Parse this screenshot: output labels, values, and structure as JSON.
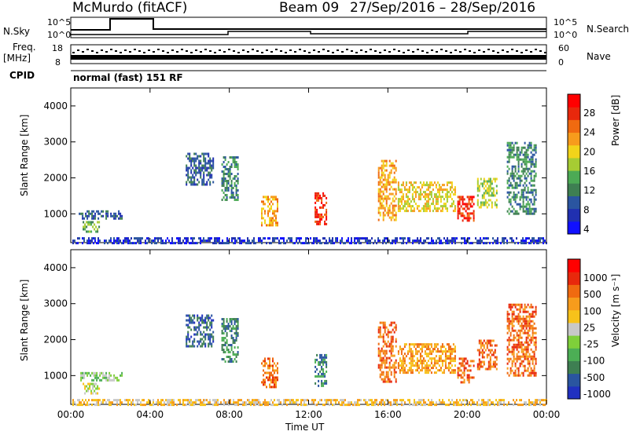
{
  "header": {
    "station": "McMurdo (fitACF)",
    "beam": "Beam 09",
    "date_range": "27/Sep/2016 – 28/Sep/2016"
  },
  "top_panels": {
    "nsky_label": "N.Sky",
    "nsky_ticks": [
      "10^5",
      "10^0"
    ],
    "nsearch_label": "N.Search",
    "nsearch_ticks": [
      "10^5",
      "10^0"
    ],
    "freq_label_1": "Freq.",
    "freq_label_2": "[MHz]",
    "freq_ticks": [
      "18",
      "8"
    ],
    "nave_label": "Nave",
    "nave_ticks": [
      "60",
      "0"
    ],
    "cpid_label": "CPID",
    "cpid_text": "normal (fast) 151 RF"
  },
  "chart_data": [
    {
      "type": "heatmap",
      "title": "",
      "xlabel": "Time UT",
      "ylabel": "Slant Range [km]",
      "x_ticks": [
        "00:00",
        "04:00",
        "08:00",
        "12:00",
        "16:00",
        "20:00",
        "00:00"
      ],
      "y_ticks": [
        1000,
        2000,
        3000,
        4000
      ],
      "ylim": [
        200,
        4500
      ],
      "xlim_hours": [
        0,
        24
      ],
      "colorbar": {
        "label": "Power [dB]",
        "tick_labels": [
          "28",
          "24",
          "20",
          "16",
          "12",
          "8",
          "4"
        ],
        "colors": [
          "#1010ff",
          "#2030b0",
          "#2a55a0",
          "#3e7f52",
          "#4caa55",
          "#a6cc33",
          "#f2d41a",
          "#f79c1c",
          "#f06a10",
          "#e8280c",
          "#ff0000"
        ]
      },
      "echo_regions": [
        {
          "t0": 0.4,
          "t1": 2.6,
          "r0": 900,
          "r1": 1100,
          "level": 2
        },
        {
          "t0": 0.6,
          "t1": 1.4,
          "r0": 500,
          "r1": 800,
          "level": 4
        },
        {
          "t0": 9.6,
          "t1": 10.4,
          "r0": 700,
          "r1": 1500,
          "level": 7
        },
        {
          "t0": 12.3,
          "t1": 12.9,
          "r0": 700,
          "r1": 1600,
          "level": 9
        },
        {
          "t0": 15.5,
          "t1": 16.4,
          "r0": 800,
          "r1": 2500,
          "level": 7
        },
        {
          "t0": 16.5,
          "t1": 19.4,
          "r0": 1100,
          "r1": 1900,
          "level": 6
        },
        {
          "t0": 19.5,
          "t1": 20.3,
          "r0": 800,
          "r1": 1500,
          "level": 9
        },
        {
          "t0": 20.5,
          "t1": 21.5,
          "r0": 1200,
          "r1": 2000,
          "level": 5
        },
        {
          "t0": 22.0,
          "t1": 23.5,
          "r0": 1000,
          "r1": 3000,
          "level": 3
        },
        {
          "t0": 7.6,
          "t1": 8.4,
          "r0": 1400,
          "r1": 2600,
          "level": 3
        },
        {
          "t0": 5.8,
          "t1": 7.2,
          "r0": 1800,
          "r1": 2700,
          "level": 2
        },
        {
          "t0": 0.0,
          "t1": 24.0,
          "r0": 200,
          "r1": 350,
          "level": 1
        }
      ]
    },
    {
      "type": "heatmap",
      "title": "",
      "xlabel": "Time UT",
      "ylabel": "Slant Range [km]",
      "x_ticks": [
        "00:00",
        "04:00",
        "08:00",
        "12:00",
        "16:00",
        "20:00",
        "00:00"
      ],
      "y_ticks": [
        1000,
        2000,
        3000,
        4000
      ],
      "ylim": [
        200,
        4500
      ],
      "xlim_hours": [
        0,
        24
      ],
      "colorbar": {
        "label": "Velocity [m s⁻¹]",
        "tick_labels": [
          "1000",
          "500",
          "100",
          "25",
          "-25",
          "-100",
          "-500",
          "-1000"
        ],
        "colors": [
          "#2030c0",
          "#2a55a0",
          "#3e7f52",
          "#4cae55",
          "#7fcf3a",
          "#c8c8c8",
          "#f7c21a",
          "#f79c1c",
          "#f06a10",
          "#e8280c",
          "#ff0000"
        ]
      },
      "echo_regions": [
        {
          "t0": 0.4,
          "t1": 2.6,
          "r0": 900,
          "r1": 1100,
          "level": 4
        },
        {
          "t0": 0.6,
          "t1": 1.4,
          "r0": 500,
          "r1": 800,
          "level": 5
        },
        {
          "t0": 9.6,
          "t1": 10.4,
          "r0": 700,
          "r1": 1500,
          "level": 8
        },
        {
          "t0": 12.3,
          "t1": 12.9,
          "r0": 700,
          "r1": 1600,
          "level": 2
        },
        {
          "t0": 15.5,
          "t1": 16.4,
          "r0": 800,
          "r1": 2500,
          "level": 8
        },
        {
          "t0": 16.5,
          "t1": 19.4,
          "r0": 1100,
          "r1": 1900,
          "level": 7
        },
        {
          "t0": 19.5,
          "t1": 20.3,
          "r0": 800,
          "r1": 1500,
          "level": 8
        },
        {
          "t0": 20.5,
          "t1": 21.5,
          "r0": 1200,
          "r1": 2000,
          "level": 8
        },
        {
          "t0": 22.0,
          "t1": 23.5,
          "r0": 1000,
          "r1": 3000,
          "level": 8
        },
        {
          "t0": 7.6,
          "t1": 8.4,
          "r0": 1400,
          "r1": 2600,
          "level": 2
        },
        {
          "t0": 5.8,
          "t1": 7.2,
          "r0": 1800,
          "r1": 2700,
          "level": 1
        },
        {
          "t0": 0.0,
          "t1": 24.0,
          "r0": 200,
          "r1": 350,
          "level": 6
        }
      ]
    }
  ]
}
